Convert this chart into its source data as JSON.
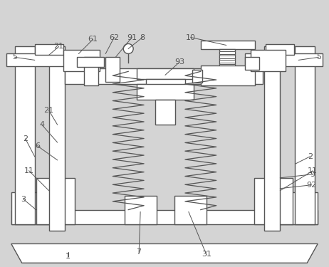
{
  "bg_color": "#d4d4d4",
  "line_color": "#555555",
  "fig_width": 4.62,
  "fig_height": 3.75
}
